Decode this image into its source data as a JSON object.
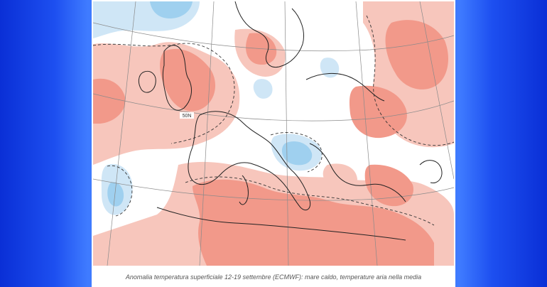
{
  "caption": "Anomalia temperatura superficiale 12-19 settembre (ECMWF): mare caldo, temperature aria nella media",
  "map_label": "50N",
  "colors": {
    "warm_light": "#f7c6bc",
    "warm_medium": "#f2998a",
    "cool_light": "#cfe6f6",
    "cool_medium": "#9fd0ef",
    "background": "#1d4ff0"
  }
}
